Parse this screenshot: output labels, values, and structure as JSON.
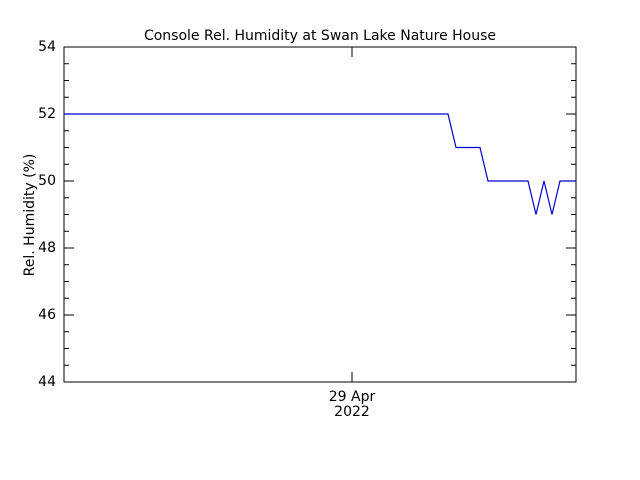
{
  "chart_data": {
    "type": "line",
    "title": "Console Rel. Humidity at Swan Lake Nature House",
    "y_label": "Rel. Humidity (%)",
    "categories": [
      null,
      null,
      null,
      null,
      null,
      null,
      null,
      null,
      null,
      null,
      null,
      null,
      null,
      null,
      null,
      null,
      null,
      null,
      null,
      null,
      null,
      null,
      null,
      null,
      null,
      null,
      null,
      null,
      null,
      null,
      null,
      null,
      null,
      null,
      null,
      null,
      "29 Apr",
      null,
      null,
      null,
      null,
      null,
      null,
      null,
      null,
      null,
      null,
      null,
      null,
      null,
      null,
      null,
      null,
      null,
      null,
      null,
      null,
      null,
      null,
      null,
      null,
      null,
      null,
      null,
      null
    ],
    "x_tick_sublabel": "2022",
    "series": [
      {
        "color": "#0000cc",
        "values": [
          52,
          52,
          52,
          52,
          52,
          52,
          52,
          52,
          52,
          52,
          52,
          52,
          52,
          52,
          52,
          52,
          52,
          52,
          52,
          52,
          52,
          52,
          52,
          52,
          52,
          52,
          52,
          52,
          52,
          52,
          52,
          52,
          52,
          52,
          52,
          52,
          52,
          52,
          52,
          52,
          52,
          52,
          52,
          52,
          52,
          52,
          52,
          52,
          52,
          51,
          51,
          51,
          51,
          50,
          50,
          50,
          50,
          50,
          50,
          49,
          50,
          49,
          50,
          50,
          50
        ]
      }
    ],
    "ylim": [
      44,
      54
    ],
    "yticks": [
      44,
      46,
      48,
      50,
      52,
      54
    ]
  }
}
